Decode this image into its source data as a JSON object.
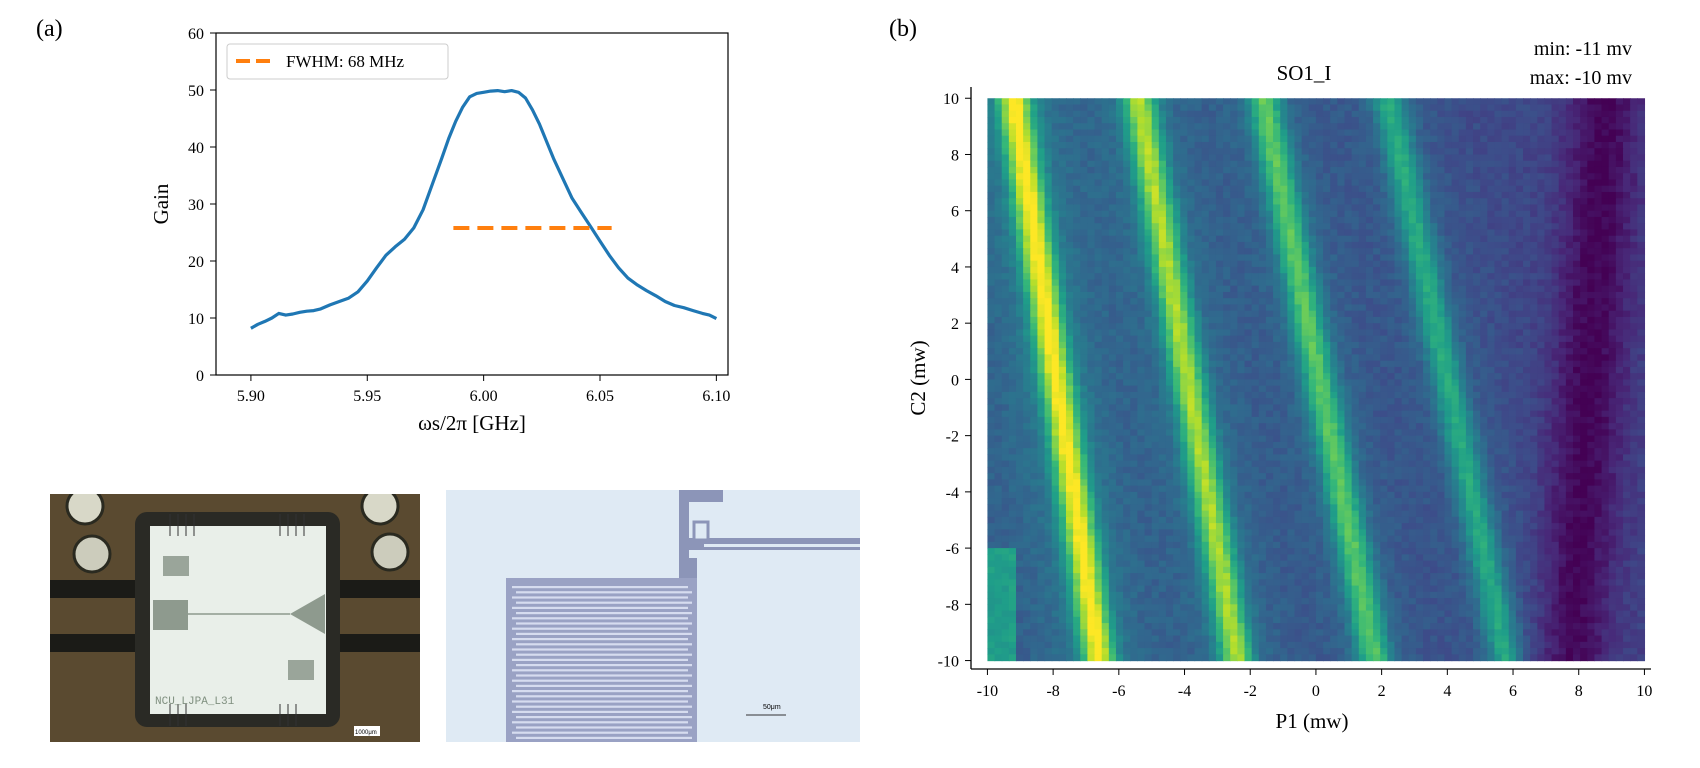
{
  "panels": {
    "a": "(a)",
    "b": "(b)"
  },
  "chart_data": [
    {
      "type": "line",
      "xlabel": "ωs/2π [GHz]",
      "ylabel": "Gain",
      "xlim": [
        5.885,
        6.105
      ],
      "ylim": [
        0,
        60
      ],
      "xticks": [
        "5.90",
        "5.95",
        "6.00",
        "6.05",
        "6.10"
      ],
      "xtick_values": [
        5.9,
        5.95,
        6.0,
        6.05,
        6.1
      ],
      "yticks": [
        "0",
        "10",
        "20",
        "30",
        "40",
        "50",
        "60"
      ],
      "ytick_values": [
        0,
        10,
        20,
        30,
        40,
        50,
        60
      ],
      "grid": false,
      "legend_position": "top-left",
      "series": [
        {
          "name": "",
          "color": "#1f77b4",
          "x": [
            5.9,
            5.903,
            5.906,
            5.909,
            5.912,
            5.915,
            5.918,
            5.921,
            5.924,
            5.927,
            5.93,
            5.934,
            5.938,
            5.942,
            5.946,
            5.95,
            5.954,
            5.958,
            5.962,
            5.966,
            5.97,
            5.974,
            5.978,
            5.982,
            5.985,
            5.988,
            5.991,
            5.994,
            5.997,
            6.0,
            6.003,
            6.006,
            6.009,
            6.012,
            6.015,
            6.018,
            6.021,
            6.024,
            6.027,
            6.03,
            6.034,
            6.038,
            6.042,
            6.046,
            6.05,
            6.054,
            6.058,
            6.062,
            6.066,
            6.07,
            6.074,
            6.078,
            6.082,
            6.086,
            6.09,
            6.094,
            6.097,
            6.1
          ],
          "y": [
            8.2,
            8.9,
            9.4,
            10.0,
            10.8,
            10.5,
            10.7,
            11.0,
            11.2,
            11.3,
            11.6,
            12.3,
            12.9,
            13.5,
            14.6,
            16.5,
            18.8,
            21.0,
            22.5,
            23.8,
            25.8,
            29.0,
            33.5,
            38.0,
            41.5,
            44.5,
            47.0,
            48.8,
            49.4,
            49.6,
            49.8,
            49.9,
            49.7,
            49.9,
            49.6,
            48.6,
            46.5,
            44.0,
            41.0,
            38.0,
            34.5,
            31.0,
            28.5,
            26.0,
            23.5,
            21.0,
            18.8,
            17.0,
            15.8,
            14.8,
            13.9,
            12.9,
            12.2,
            11.8,
            11.3,
            10.8,
            10.5,
            9.9
          ]
        },
        {
          "name": "FWHM: 68 MHz",
          "color": "#ff7f0e",
          "dashed": true,
          "x": [
            5.987,
            6.055
          ],
          "y": [
            25.8,
            25.8
          ]
        }
      ]
    },
    {
      "type": "heatmap",
      "title": "SO1_I",
      "annotation": [
        "min: -11 mv",
        "max: -10 mv"
      ],
      "xlabel": "P1 (mw)",
      "ylabel": "C2 (mw)",
      "xlim": [
        -10.5,
        10.2
      ],
      "ylim": [
        -10.3,
        10.4
      ],
      "xticks": [
        "-10",
        "-8",
        "-6",
        "-4",
        "-2",
        "0",
        "2",
        "4",
        "6",
        "8",
        "10"
      ],
      "xtick_values": [
        -10,
        -8,
        -6,
        -4,
        -2,
        0,
        2,
        4,
        6,
        8,
        10
      ],
      "yticks": [
        "10",
        "8",
        "6",
        "4",
        "2",
        "0",
        "-2",
        "-4",
        "-6",
        "-8",
        "-10"
      ],
      "ytick_values": [
        10,
        8,
        6,
        4,
        2,
        0,
        -2,
        -4,
        -6,
        -8,
        -10
      ],
      "colormap": "viridis",
      "value_range_mv": [
        -11,
        -10
      ],
      "bands": [
        {
          "p1_at_c2_plus10": -9.2,
          "p1_at_c2_minus10": -6.6,
          "strength": 0.95
        },
        {
          "p1_at_c2_plus10": -5.4,
          "p1_at_c2_minus10": -2.4,
          "strength": 0.8
        },
        {
          "p1_at_c2_plus10": -1.6,
          "p1_at_c2_minus10": 1.8,
          "strength": 0.65
        },
        {
          "p1_at_c2_plus10": 2.2,
          "p1_at_c2_minus10": 5.8,
          "strength": 0.5
        }
      ],
      "dark_bands": [
        {
          "p1_at_c2_plus10": 8.8,
          "p1_at_c2_minus10": 7.8
        }
      ]
    }
  ],
  "photos": {
    "chip_label": "NCU_LJPA_L31",
    "chip_scalebar": "1000μm",
    "resonator_scalebar": "50μm"
  }
}
